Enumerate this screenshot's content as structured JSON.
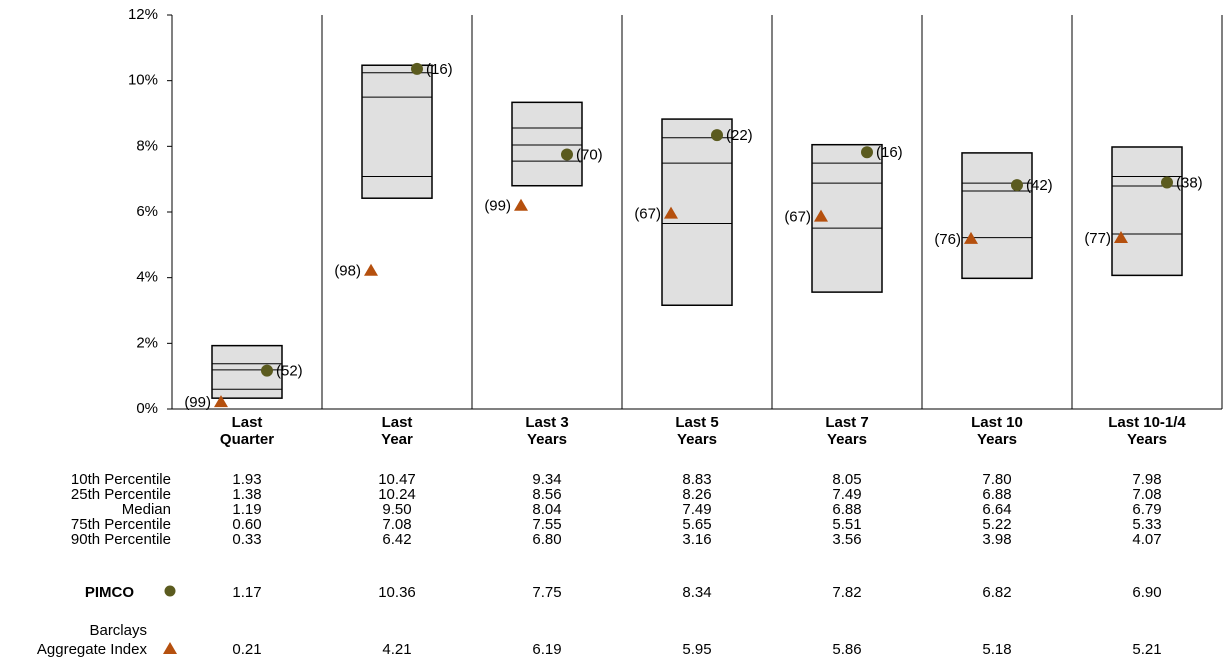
{
  "chart_data": {
    "type": "floating_box",
    "categories": [
      "Last Quarter",
      "Last Year",
      "Last 3 Years",
      "Last 5 Years",
      "Last 7 Years",
      "Last 10 Years",
      "Last 10-1/4 Years"
    ],
    "ylim": [
      0,
      12
    ],
    "yticks": [
      {
        "value": 0,
        "label": "0%"
      },
      {
        "value": 2,
        "label": "2%"
      },
      {
        "value": 4,
        "label": "4%"
      },
      {
        "value": 6,
        "label": "6%"
      },
      {
        "value": 8,
        "label": "8%"
      },
      {
        "value": 10,
        "label": "10%"
      },
      {
        "value": 12,
        "label": "12%"
      }
    ],
    "box_color": "#e0e0e0",
    "percentiles": [
      {
        "name": "10th Percentile",
        "values": [
          1.93,
          10.47,
          9.34,
          8.83,
          8.05,
          7.8,
          7.98
        ],
        "value_labels": [
          "1.93",
          "10.47",
          "9.34",
          "8.83",
          "8.05",
          "7.80",
          "7.98"
        ]
      },
      {
        "name": "25th Percentile",
        "values": [
          1.38,
          10.24,
          8.56,
          8.26,
          7.49,
          6.88,
          7.08
        ],
        "value_labels": [
          "1.38",
          "10.24",
          "8.56",
          "8.26",
          "7.49",
          "6.88",
          "7.08"
        ]
      },
      {
        "name": "Median",
        "values": [
          1.19,
          9.5,
          8.04,
          7.49,
          6.88,
          6.64,
          6.79
        ],
        "value_labels": [
          "1.19",
          "9.50",
          "8.04",
          "7.49",
          "6.88",
          "6.64",
          "6.79"
        ]
      },
      {
        "name": "75th Percentile",
        "values": [
          0.6,
          7.08,
          7.55,
          5.65,
          5.51,
          5.22,
          5.33
        ],
        "value_labels": [
          "0.60",
          "7.08",
          "7.55",
          "5.65",
          "5.51",
          "5.22",
          "5.33"
        ]
      },
      {
        "name": "90th Percentile",
        "values": [
          0.33,
          6.42,
          6.8,
          3.16,
          3.56,
          3.98,
          4.07
        ],
        "value_labels": [
          "0.33",
          "6.42",
          "6.80",
          "3.16",
          "3.56",
          "3.98",
          "4.07"
        ]
      }
    ],
    "series": [
      {
        "name": "PIMCO",
        "marker": "circle",
        "color": "#5b5b1f",
        "values": [
          1.17,
          10.36,
          7.75,
          8.34,
          7.82,
          6.82,
          6.9
        ],
        "value_labels": [
          "1.17",
          "10.36",
          "7.75",
          "8.34",
          "7.82",
          "6.82",
          "6.90"
        ],
        "rank_labels": [
          "(52)",
          "(16)",
          "(70)",
          "(22)",
          "(16)",
          "(42)",
          "(38)"
        ]
      },
      {
        "name": "Barclays Aggregate Index",
        "marker": "triangle",
        "color": "#b5500e",
        "values": [
          0.21,
          4.21,
          6.19,
          5.95,
          5.86,
          5.18,
          5.21
        ],
        "value_labels": [
          "0.21",
          "4.21",
          "6.19",
          "5.95",
          "5.86",
          "5.18",
          "5.21"
        ],
        "rank_labels": [
          "(99)",
          "(98)",
          "(99)",
          "(67)",
          "(67)",
          "(76)",
          "(77)"
        ]
      }
    ]
  }
}
